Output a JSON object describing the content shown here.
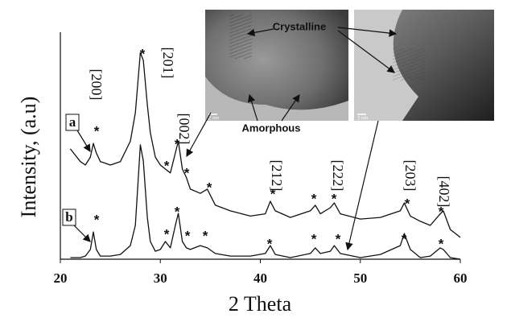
{
  "chart_data": {
    "type": "line",
    "xlabel": "2 Theta",
    "ylabel": "Intensity, (a.u)",
    "xlim": [
      20,
      60
    ],
    "xticks": [
      20,
      30,
      40,
      50,
      60
    ],
    "ylim": [
      0,
      100
    ],
    "x": [
      21,
      22,
      22.5,
      23,
      23.3,
      23.6,
      24,
      25,
      26,
      27,
      27.5,
      28,
      28.3,
      28.7,
      29,
      29.5,
      30,
      30.5,
      31,
      31.5,
      31.8,
      32.2,
      32.6,
      33,
      34,
      34.7,
      35.5,
      37,
      39,
      40.5,
      41,
      41.5,
      43,
      45,
      45.5,
      46,
      47,
      47.4,
      48,
      50,
      52,
      54,
      54.4,
      55,
      56,
      57,
      58,
      58.3,
      59,
      60
    ],
    "series": [
      {
        "name": "a",
        "color": "#111111",
        "values": [
          48.6,
          43,
          41.5,
          45,
          51,
          46.8,
          43,
          41.5,
          43,
          52,
          64.5,
          91,
          87.6,
          68,
          55.7,
          45,
          41.5,
          39.7,
          38,
          46.8,
          52,
          39.7,
          36,
          30.9,
          29,
          30.9,
          23.8,
          21.3,
          19,
          20,
          25.5,
          21.3,
          18.4,
          21.3,
          23.8,
          20,
          22.7,
          24.8,
          20,
          17.7,
          18.4,
          21.3,
          24.8,
          19,
          16.7,
          14.9,
          20,
          21.3,
          13.1,
          9.6
        ]
      },
      {
        "name": "b",
        "color": "#111111",
        "values": [
          0.7,
          0.7,
          1.4,
          4.3,
          12,
          4.3,
          1.4,
          1.4,
          2.1,
          6,
          14.9,
          50.4,
          43.3,
          18.4,
          7.8,
          3.5,
          4.3,
          7.8,
          5,
          14.9,
          20.2,
          7.8,
          5,
          4.3,
          6,
          5,
          2.5,
          1.4,
          1.4,
          2.5,
          6,
          2.1,
          0.7,
          2.5,
          5,
          2.5,
          3.5,
          6,
          2.5,
          0.7,
          2.1,
          6,
          11.3,
          4.3,
          0.7,
          1.4,
          5,
          4.3,
          0.7,
          0
        ]
      }
    ],
    "peak_labels": [
      "[200]",
      "[201]",
      "[002]",
      "[212]",
      "[222]",
      "[203]",
      "[402]"
    ],
    "asterisks": [
      "*",
      "*",
      "*",
      "*",
      "*",
      "*",
      "*",
      "*",
      "*",
      "*",
      "*",
      "*",
      "*",
      "*",
      "*",
      "*",
      "*",
      "*",
      "*",
      "*",
      "*"
    ],
    "inset_labels": [
      "Crystalline",
      "Amorphous"
    ],
    "scale_bars": [
      "2 nm",
      "2 nm"
    ]
  }
}
